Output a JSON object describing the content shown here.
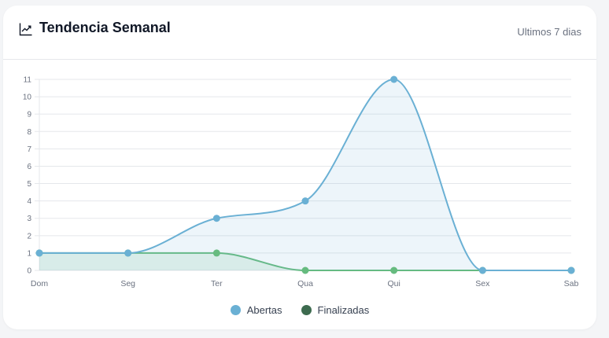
{
  "header": {
    "title": "Tendencia Semanal",
    "subtitle": "Ultimos 7 dias",
    "icon": "trending-up-icon"
  },
  "legend": {
    "items": [
      {
        "label": "Abertas",
        "color": "#6ab0d4"
      },
      {
        "label": "Finalizadas",
        "color": "#3d6b4f"
      }
    ]
  },
  "chart_data": {
    "type": "line",
    "title": "Tendencia Semanal",
    "subtitle": "Ultimos 7 dias",
    "categories": [
      "Dom",
      "Seg",
      "Ter",
      "Qua",
      "Qui",
      "Sex",
      "Sab"
    ],
    "series": [
      {
        "name": "Abertas",
        "values": [
          1,
          1,
          3,
          4,
          11,
          0,
          0
        ],
        "color": "#6ab0d4",
        "fill": "rgba(106,176,212,0.12)"
      },
      {
        "name": "Finalizadas",
        "values": [
          1,
          1,
          1,
          0,
          0,
          0,
          0
        ],
        "color": "#66bb7f",
        "fill": "rgba(102,187,127,0.15)"
      }
    ],
    "xlabel": "",
    "ylabel": "",
    "ylim": [
      0,
      11
    ],
    "yticks": [
      0,
      1,
      2,
      3,
      4,
      5,
      6,
      7,
      8,
      9,
      10,
      11
    ],
    "grid": true,
    "smooth": true,
    "legend_position": "bottom"
  }
}
